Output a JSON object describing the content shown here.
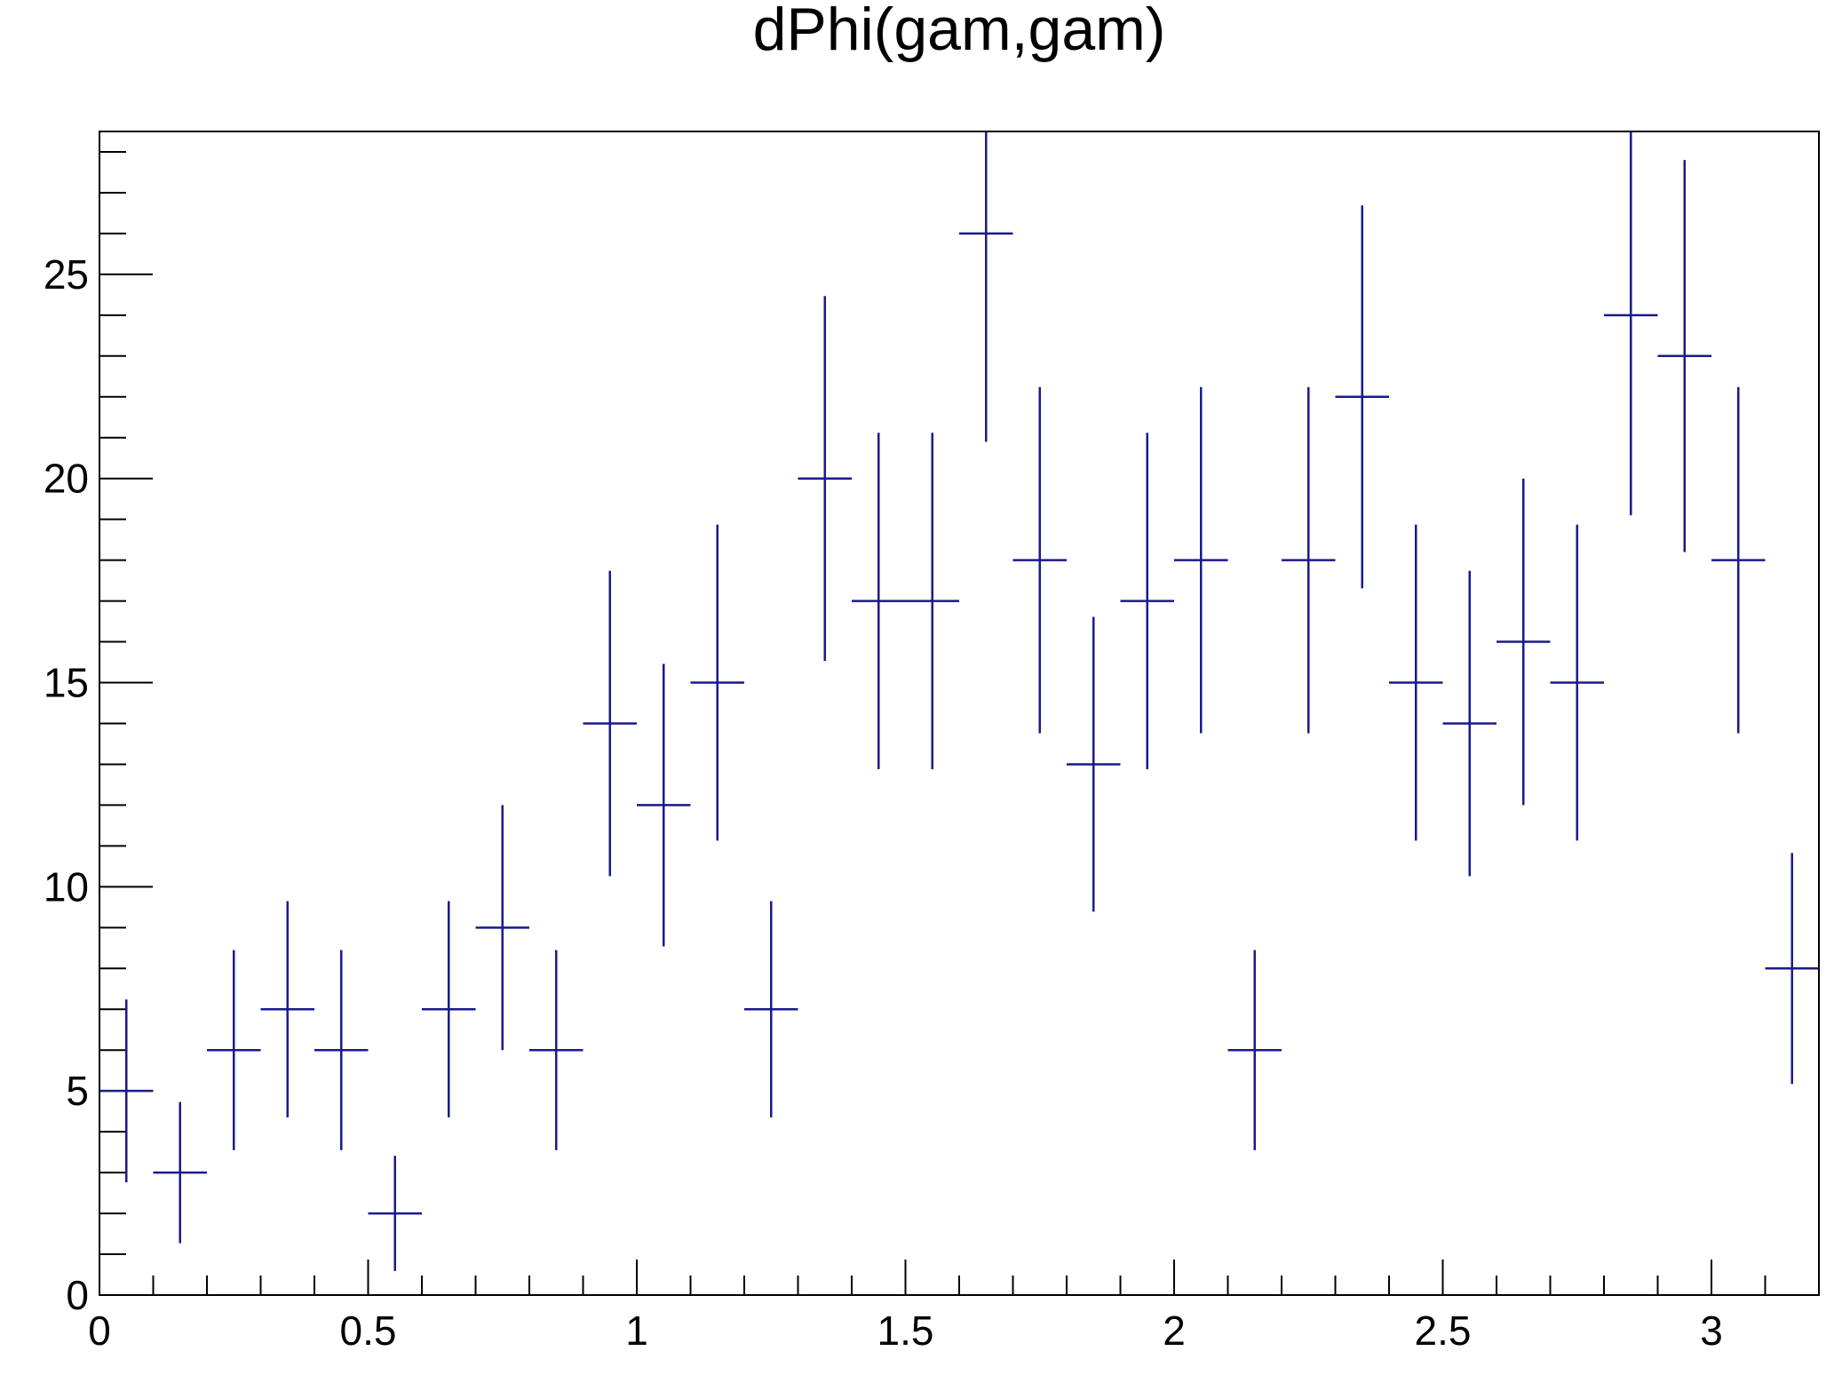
{
  "chart_data": {
    "type": "scatter",
    "title": "dPhi(gam,gam)",
    "xlabel": "",
    "ylabel": "",
    "xlim": [
      0,
      3.2
    ],
    "ylim": [
      0,
      28.5
    ],
    "x_ticks": [
      0,
      0.5,
      1,
      1.5,
      2,
      2.5,
      3
    ],
    "x_tick_labels": [
      "0",
      "0.5",
      "1",
      "1.5",
      "2",
      "2.5",
      "3"
    ],
    "y_ticks": [
      0,
      5,
      10,
      15,
      20,
      25
    ],
    "y_tick_labels": [
      "0",
      "5",
      "10",
      "15",
      "20",
      "25"
    ],
    "grid": false,
    "legend": "none",
    "color": "#1a1a8c",
    "bin_width": 0.1,
    "series": [
      {
        "x": [
          0.05,
          0.15,
          0.25,
          0.35,
          0.45,
          0.55,
          0.65,
          0.75,
          0.85,
          0.95,
          1.05,
          1.15,
          1.25,
          1.35,
          1.45,
          1.55,
          1.65,
          1.75,
          1.85,
          1.95,
          2.05,
          2.15,
          2.25,
          2.35,
          2.45,
          2.55,
          2.65,
          2.75,
          2.85,
          2.95,
          3.05,
          3.15
        ],
        "values": [
          5,
          3,
          6,
          7,
          6,
          2,
          7,
          9,
          6,
          14,
          12,
          15,
          7,
          20,
          17,
          17,
          26,
          18,
          13,
          17,
          18,
          6,
          18,
          22,
          15,
          14,
          16,
          15,
          24,
          23,
          18,
          8
        ],
        "errors": [
          2.24,
          1.73,
          2.45,
          2.65,
          2.45,
          1.41,
          2.65,
          3.0,
          2.45,
          3.74,
          3.46,
          3.87,
          2.65,
          4.47,
          4.12,
          4.12,
          5.1,
          4.24,
          3.61,
          4.12,
          4.24,
          2.45,
          4.24,
          4.69,
          3.87,
          3.74,
          4.0,
          3.87,
          4.9,
          4.8,
          4.24,
          2.83
        ]
      }
    ]
  }
}
